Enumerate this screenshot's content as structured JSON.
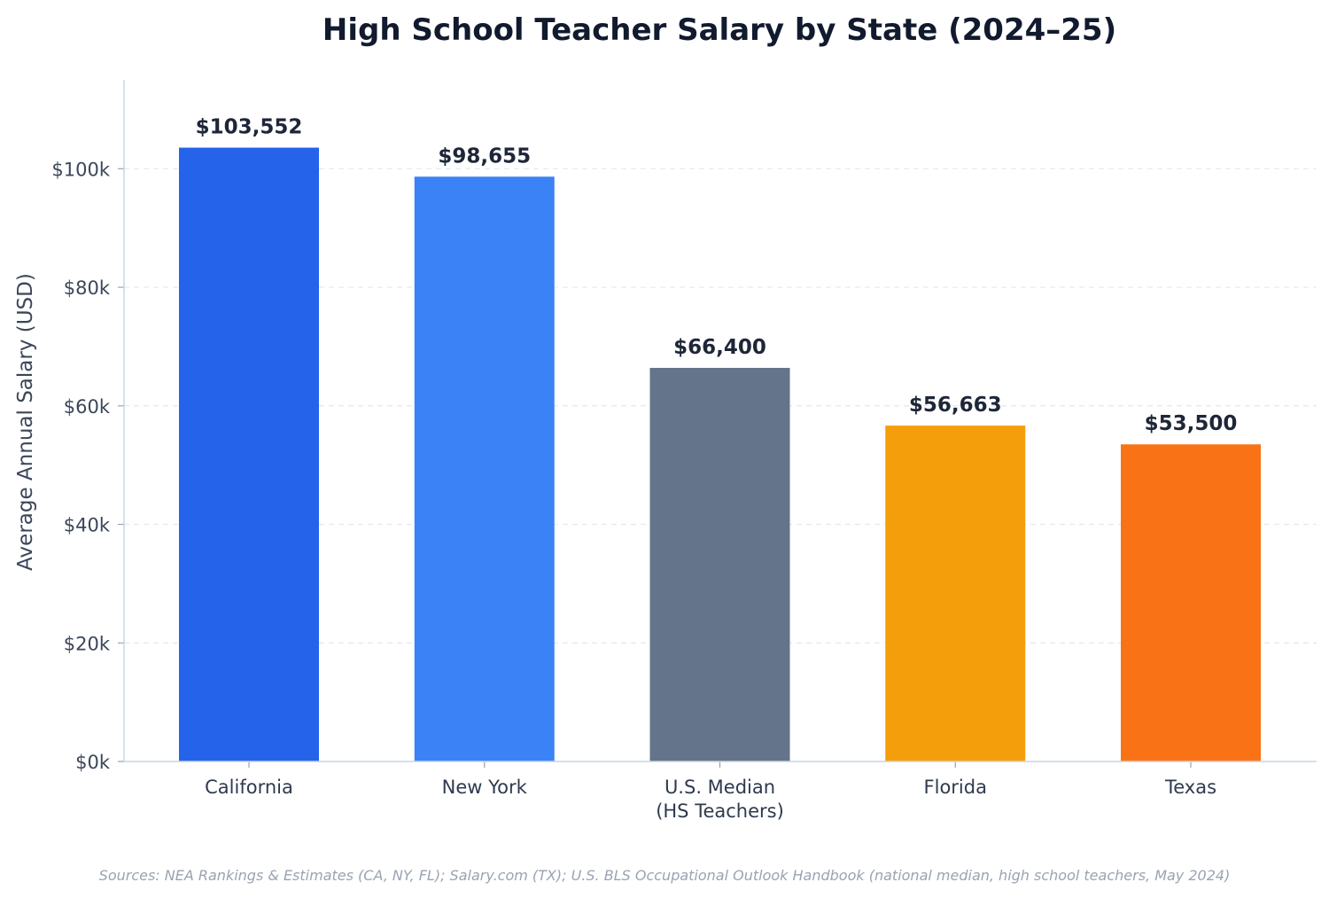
{
  "chart_data": {
    "type": "bar",
    "title": "High School Teacher Salary by State (2024–25)",
    "ylabel": "Average Annual Salary (USD)",
    "xlabel": "",
    "categories": [
      [
        "California"
      ],
      [
        "New York"
      ],
      [
        "U.S. Median",
        "(HS Teachers)"
      ],
      [
        "Florida"
      ],
      [
        "Texas"
      ]
    ],
    "values": [
      103552,
      98655,
      66400,
      56663,
      53500
    ],
    "value_labels": [
      "$103,552",
      "$98,655",
      "$66,400",
      "$56,663",
      "$53,500"
    ],
    "colors": [
      "#2563eb",
      "#3b82f6",
      "#64748b",
      "#f59e0b",
      "#f97316"
    ],
    "ylim": [
      0,
      115000
    ],
    "yticks": [
      0,
      20000,
      40000,
      60000,
      80000,
      100000
    ],
    "ytick_labels": [
      "$0k",
      "$20k",
      "$40k",
      "$60k",
      "$80k",
      "$100k"
    ],
    "grid": "horizontal dashed",
    "legend": "none"
  },
  "footer": {
    "source": "Sources: NEA Rankings & Estimates (CA, NY, FL); Salary.com (TX); U.S. BLS Occupational Outlook Handbook (national median, high school teachers, May 2024)"
  }
}
